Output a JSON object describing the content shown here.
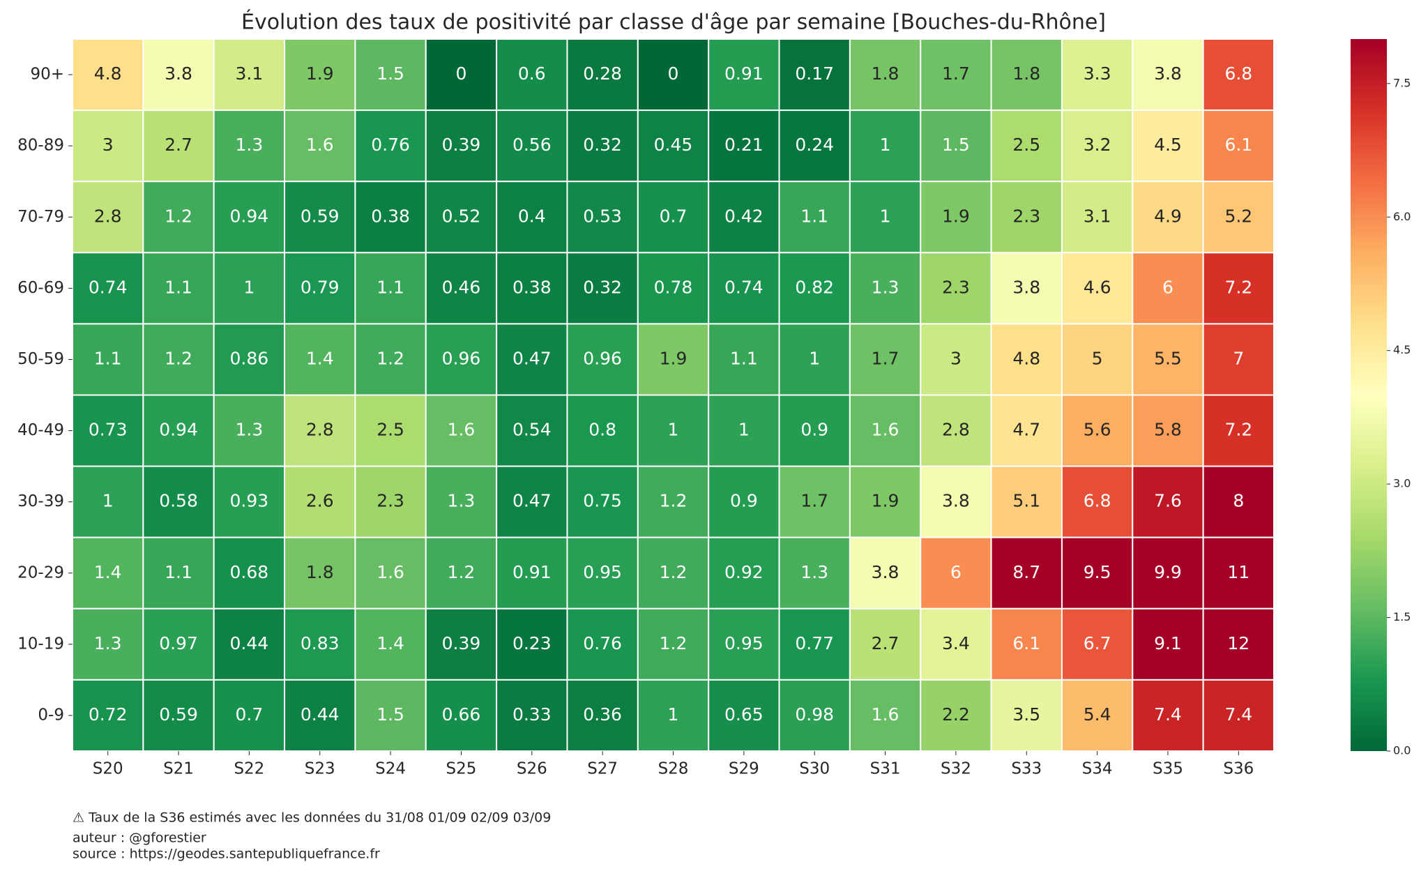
{
  "chart_data": {
    "type": "heatmap",
    "title": "Évolution des taux de positivité par classe d'âge par semaine [Bouches-du-Rhône]",
    "x": [
      "S20",
      "S21",
      "S22",
      "S23",
      "S24",
      "S25",
      "S26",
      "S27",
      "S28",
      "S29",
      "S30",
      "S31",
      "S32",
      "S33",
      "S34",
      "S35",
      "S36"
    ],
    "y": [
      "90+",
      "80-89",
      "70-79",
      "60-69",
      "50-59",
      "40-49",
      "30-39",
      "20-29",
      "10-19",
      "0-9"
    ],
    "values": [
      [
        4.8,
        3.8,
        3.1,
        1.9,
        1.5,
        0,
        0.6,
        0.28,
        0,
        0.91,
        0.17,
        1.8,
        1.7,
        1.8,
        3.3,
        3.8,
        6.8
      ],
      [
        3,
        2.7,
        1.3,
        1.6,
        0.76,
        0.39,
        0.56,
        0.32,
        0.45,
        0.21,
        0.24,
        1,
        1.5,
        2.5,
        3.2,
        4.5,
        6.1
      ],
      [
        2.8,
        1.2,
        0.94,
        0.59,
        0.38,
        0.52,
        0.4,
        0.53,
        0.7,
        0.42,
        1.1,
        1,
        1.9,
        2.3,
        3.1,
        4.9,
        5.2
      ],
      [
        0.74,
        1.1,
        1,
        0.79,
        1.1,
        0.46,
        0.38,
        0.32,
        0.78,
        0.74,
        0.82,
        1.3,
        2.3,
        3.8,
        4.6,
        6,
        7.2
      ],
      [
        1.1,
        1.2,
        0.86,
        1.4,
        1.2,
        0.96,
        0.47,
        0.96,
        1.9,
        1.1,
        1,
        1.7,
        3,
        4.8,
        5,
        5.5,
        7
      ],
      [
        0.73,
        0.94,
        1.3,
        2.8,
        2.5,
        1.6,
        0.54,
        0.8,
        1,
        1,
        0.9,
        1.6,
        2.8,
        4.7,
        5.6,
        5.8,
        7.2
      ],
      [
        1,
        0.58,
        0.93,
        2.6,
        2.3,
        1.3,
        0.47,
        0.75,
        1.2,
        0.9,
        1.7,
        1.9,
        3.8,
        5.1,
        6.8,
        7.6,
        8
      ],
      [
        1.4,
        1.1,
        0.68,
        1.8,
        1.6,
        1.2,
        0.91,
        0.95,
        1.2,
        0.92,
        1.3,
        3.8,
        6,
        8.7,
        9.5,
        9.9,
        11
      ],
      [
        1.3,
        0.97,
        0.44,
        0.83,
        1.4,
        0.39,
        0.23,
        0.76,
        1.2,
        0.95,
        0.77,
        2.7,
        3.4,
        6.1,
        6.7,
        9.1,
        12
      ],
      [
        0.72,
        0.59,
        0.7,
        0.44,
        1.5,
        0.66,
        0.33,
        0.36,
        1,
        0.65,
        0.98,
        1.6,
        2.2,
        3.5,
        5.4,
        7.4,
        7.4
      ]
    ],
    "clim": [
      0,
      8
    ],
    "cticks": [
      {
        "value": 0,
        "label": "0.0"
      },
      {
        "value": 1.5,
        "label": "1.5"
      },
      {
        "value": 3,
        "label": "3.0"
      },
      {
        "value": 4.5,
        "label": "4.5"
      },
      {
        "value": 6,
        "label": "6.0"
      },
      {
        "value": 7.5,
        "label": "7.5"
      }
    ],
    "colormap": [
      "#006837",
      "#1a9850",
      "#66bd63",
      "#a6d96a",
      "#d9ef8b",
      "#ffffbf",
      "#fee08b",
      "#fdae61",
      "#f46d43",
      "#d73027",
      "#a50026"
    ],
    "notes": [
      "⚠ Taux de la S36 estimés avec les données du 31/08 01/09 02/09 03/09",
      "auteur : @gforestier",
      "source : https://geodes.santepubliquefrance.fr"
    ]
  }
}
